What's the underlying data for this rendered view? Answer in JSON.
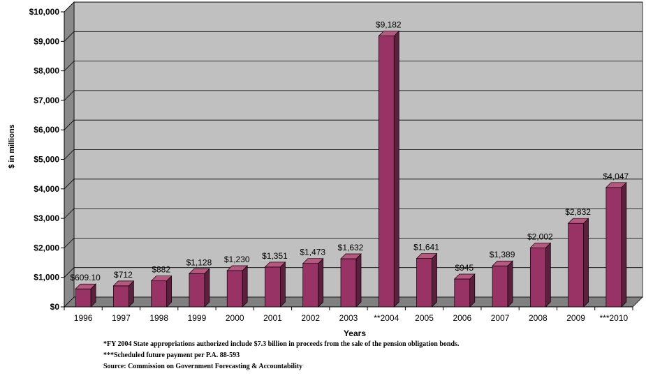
{
  "chart_data": {
    "type": "bar",
    "title": "",
    "xlabel": "Years",
    "ylabel": "$ in millions",
    "ylim": [
      0,
      10000
    ],
    "ytick_step": 1000,
    "ytick_labels": [
      "$0",
      "$1,000",
      "$2,000",
      "$3,000",
      "$4,000",
      "$5,000",
      "$6,000",
      "$7,000",
      "$8,000",
      "$9,000",
      "$10,000"
    ],
    "grid": true,
    "style": "3d",
    "bar_color": "#993366",
    "categories": [
      "1996",
      "1997",
      "1998",
      "1999",
      "2000",
      "2001",
      "2002",
      "2003",
      "**2004",
      "2005",
      "2006",
      "2007",
      "2008",
      "2009",
      "***2010"
    ],
    "values": [
      609.1,
      712,
      882,
      1128,
      1230,
      1351,
      1473,
      1632,
      9182,
      1641,
      945,
      1389,
      2002,
      2832,
      4047
    ],
    "data_labels": [
      "$609.10",
      "$712",
      "$882",
      "$1,128",
      "$1,230",
      "$1,351",
      "$1,473",
      "$1,632",
      "$9,182",
      "$1,641",
      "$945",
      "$1,389",
      "$2,002",
      "$2,832",
      "$4,047"
    ]
  },
  "footnotes": {
    "note1": "*FY 2004 State appropriations authorized include $7.3 billion in proceeds from the sale of the pension obligation bonds.",
    "note2": "***Scheduled future payment per P.A. 88-593",
    "source": "Source: Commission on Government Forecasting & Accountability"
  }
}
